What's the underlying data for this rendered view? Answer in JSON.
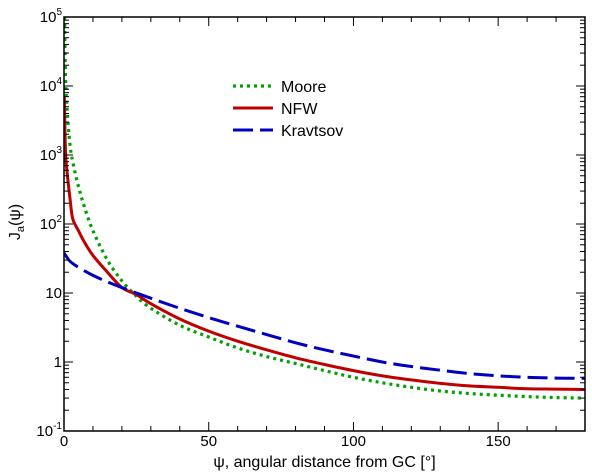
{
  "chart_data": {
    "type": "line",
    "title": "",
    "xlabel": "ψ, angular distance from GC [°]",
    "ylabel": "J_a(ψ)",
    "ylabel_main": "J",
    "ylabel_sub": "a",
    "ylabel_tail": "(ψ)",
    "xlim": [
      0,
      180
    ],
    "ylim": [
      0.1,
      100000
    ],
    "yscale": "log",
    "grid": false,
    "legend_position": "top-center",
    "x_ticks": [
      {
        "value": 0,
        "label": "0"
      },
      {
        "value": 50,
        "label": "50"
      },
      {
        "value": 100,
        "label": "100"
      },
      {
        "value": 150,
        "label": "150"
      }
    ],
    "y_ticks": [
      {
        "value": 0.1,
        "base": "10",
        "exp": "-1",
        "plain": ""
      },
      {
        "value": 1,
        "base": "",
        "exp": "",
        "plain": "1"
      },
      {
        "value": 10,
        "base": "",
        "exp": "",
        "plain": "10"
      },
      {
        "value": 100,
        "base": "10",
        "exp": "2",
        "plain": ""
      },
      {
        "value": 1000,
        "base": "10",
        "exp": "3",
        "plain": ""
      },
      {
        "value": 10000,
        "base": "10",
        "exp": "4",
        "plain": ""
      },
      {
        "value": 100000,
        "base": "10",
        "exp": "5",
        "plain": ""
      }
    ],
    "series": [
      {
        "name": "Moore",
        "color": "#00a000",
        "dash": "dotted",
        "x": [
          0.2,
          0.5,
          1,
          2,
          3,
          5,
          7,
          10,
          15,
          20,
          25,
          30,
          40,
          50,
          60,
          70,
          80,
          90,
          100,
          110,
          120,
          130,
          140,
          150,
          160,
          170,
          180
        ],
        "y": [
          100000,
          15000,
          5000,
          1500,
          800,
          350,
          180,
          80,
          30,
          15,
          9,
          6,
          3.4,
          2.3,
          1.6,
          1.2,
          0.95,
          0.75,
          0.6,
          0.5,
          0.43,
          0.38,
          0.35,
          0.33,
          0.315,
          0.305,
          0.3
        ]
      },
      {
        "name": "NFW",
        "color": "#c00000",
        "dash": "solid",
        "x": [
          0.1,
          0.5,
          1,
          2,
          3,
          5,
          7,
          10,
          15,
          20,
          25,
          30,
          40,
          50,
          60,
          70,
          80,
          90,
          100,
          110,
          120,
          130,
          140,
          150,
          160,
          170,
          180
        ],
        "y": [
          7000,
          1200,
          600,
          250,
          120,
          80,
          55,
          35,
          20,
          12,
          9.5,
          7,
          4.2,
          2.8,
          2,
          1.5,
          1.15,
          0.92,
          0.75,
          0.63,
          0.55,
          0.49,
          0.45,
          0.43,
          0.41,
          0.405,
          0.4
        ]
      },
      {
        "name": "Kravtsov",
        "color": "#0000c0",
        "dash": "dashed",
        "x": [
          0,
          1,
          2,
          4,
          7,
          10,
          15,
          20,
          25,
          30,
          40,
          50,
          60,
          70,
          80,
          90,
          100,
          110,
          120,
          130,
          140,
          150,
          160,
          170,
          180
        ],
        "y": [
          38,
          33,
          29,
          25,
          21,
          18,
          14.5,
          12,
          10,
          8.4,
          6,
          4.4,
          3.3,
          2.5,
          1.9,
          1.5,
          1.22,
          1.0,
          0.86,
          0.76,
          0.68,
          0.63,
          0.6,
          0.585,
          0.58
        ]
      }
    ]
  }
}
